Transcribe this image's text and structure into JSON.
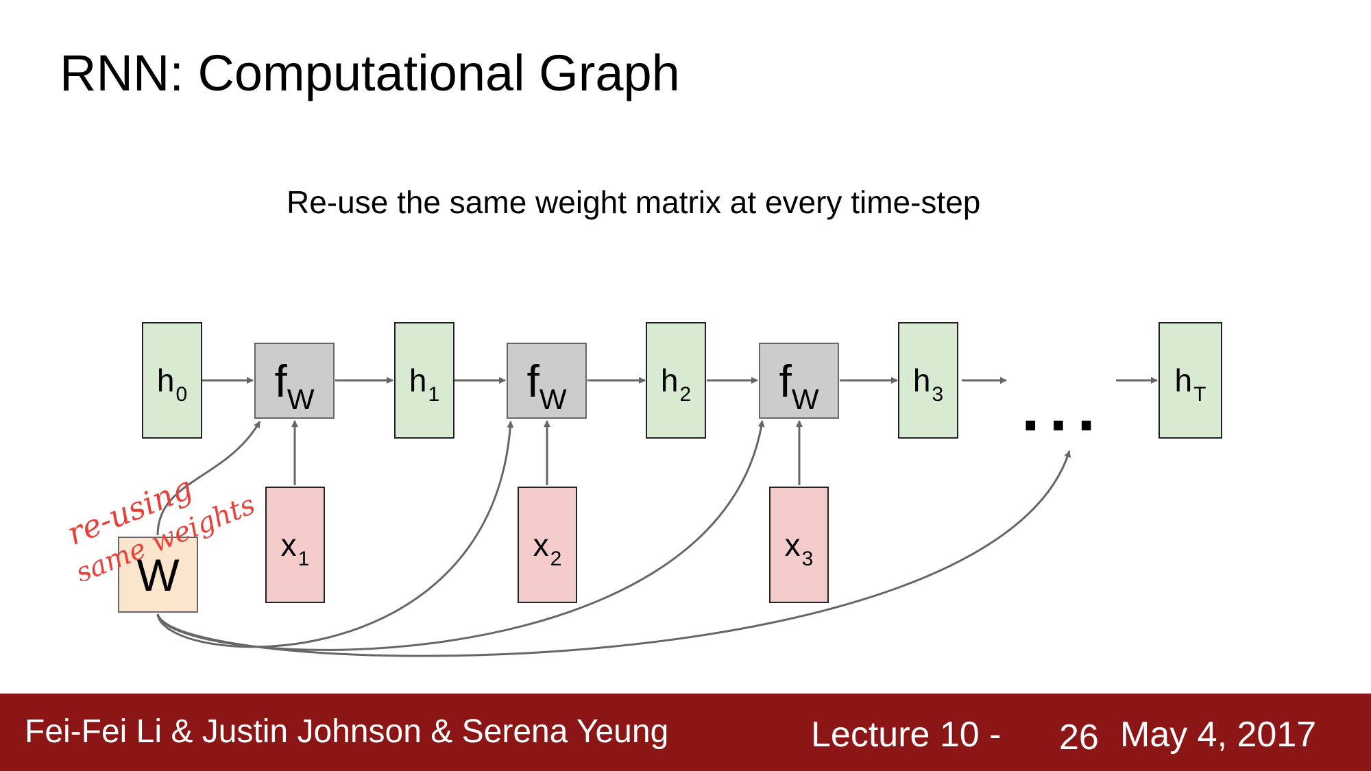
{
  "slide": {
    "title": "RNN: Computational Graph",
    "subtitle": "Re-use the same weight matrix at every time-step"
  },
  "diagram": {
    "hidden_states": [
      {
        "base": "h",
        "sub": "0"
      },
      {
        "base": "h",
        "sub": "1"
      },
      {
        "base": "h",
        "sub": "2"
      },
      {
        "base": "h",
        "sub": "3"
      },
      {
        "base": "h",
        "sub": "T"
      }
    ],
    "functions": [
      {
        "base": "f",
        "sub": "W"
      },
      {
        "base": "f",
        "sub": "W"
      },
      {
        "base": "f",
        "sub": "W"
      }
    ],
    "inputs": [
      {
        "base": "x",
        "sub": "1"
      },
      {
        "base": "x",
        "sub": "2"
      },
      {
        "base": "x",
        "sub": "3"
      }
    ],
    "weight": "W",
    "ellipsis": "...",
    "colors": {
      "hidden": "#d9ead3",
      "function": "#cccccc",
      "input": "#f4cccc",
      "weight": "#fce5cd",
      "arrow": "#666666",
      "handwriting": "#e8413a"
    }
  },
  "annotation": {
    "line1": "re-using",
    "line2": "same weights"
  },
  "footer": {
    "authors": "Fei-Fei Li & Justin Johnson & Serena Yeung",
    "lecture": "Lecture 10 -",
    "page": "26",
    "date": "May 4, 2017",
    "background": "#8c1515"
  }
}
